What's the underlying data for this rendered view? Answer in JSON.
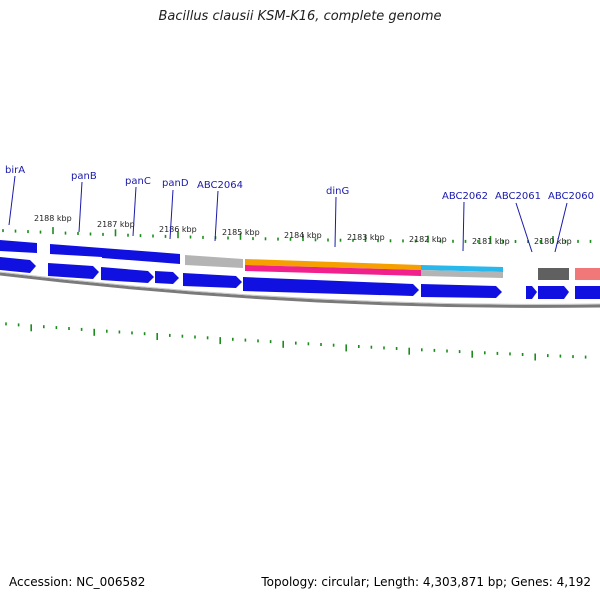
{
  "title": "Bacillus clausii KSM-K16, complete genome",
  "footer": {
    "accession": "Accession: NC_006582",
    "stats": "Topology: circular; Length: 4,303,871 bp; Genes: 4,192"
  },
  "colors": {
    "forward_gene": "#1010e0",
    "tick": "#1c8c1c",
    "backbone": "#888888",
    "label": "#1a1aaa"
  },
  "kbp_labels": [
    "2188 kbp",
    "2187 kbp",
    "2186 kbp",
    "2185 kbp",
    "2184 kbp",
    "2183 kbp",
    "2182 kbp",
    "2181 kbp",
    "2180 kbp"
  ],
  "gene_labels": [
    "birA",
    "panB",
    "panC",
    "panD",
    "ABC2064",
    "dinG",
    "ABC2062",
    "ABC2061",
    "ABC2060"
  ]
}
